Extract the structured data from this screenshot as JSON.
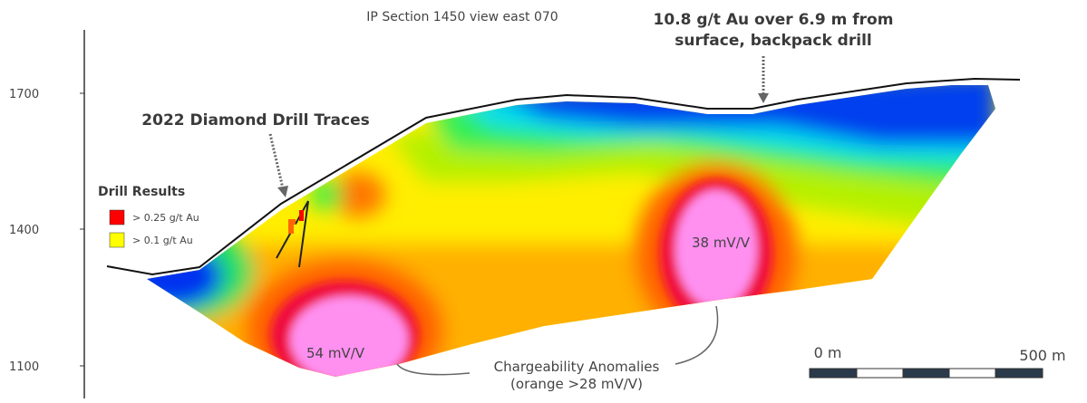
{
  "title": "IP Section 1450 view east 070",
  "elevation_labels": [
    "1700",
    "1400",
    "1100"
  ],
  "callouts": {
    "backpack_drill": [
      "10.8 g/t Au over 6.9 m from",
      "surface, backpack drill"
    ],
    "diamond_drill": "2022 Diamond Drill Traces"
  },
  "legend": {
    "title": "Drill Results",
    "items": [
      {
        "label": "> 0.25 g/t Au",
        "color": "#ff0000"
      },
      {
        "label": "> 0.1 g/t Au",
        "color": "#ffff00"
      }
    ]
  },
  "anomaly_labels": [
    "38 mV/V",
    "54 mV/V"
  ],
  "anomaly_note": [
    "Chargeability Anomalies",
    "(orange >28 mV/V)"
  ],
  "scale_bar": [
    "0 m",
    "500 m"
  ]
}
